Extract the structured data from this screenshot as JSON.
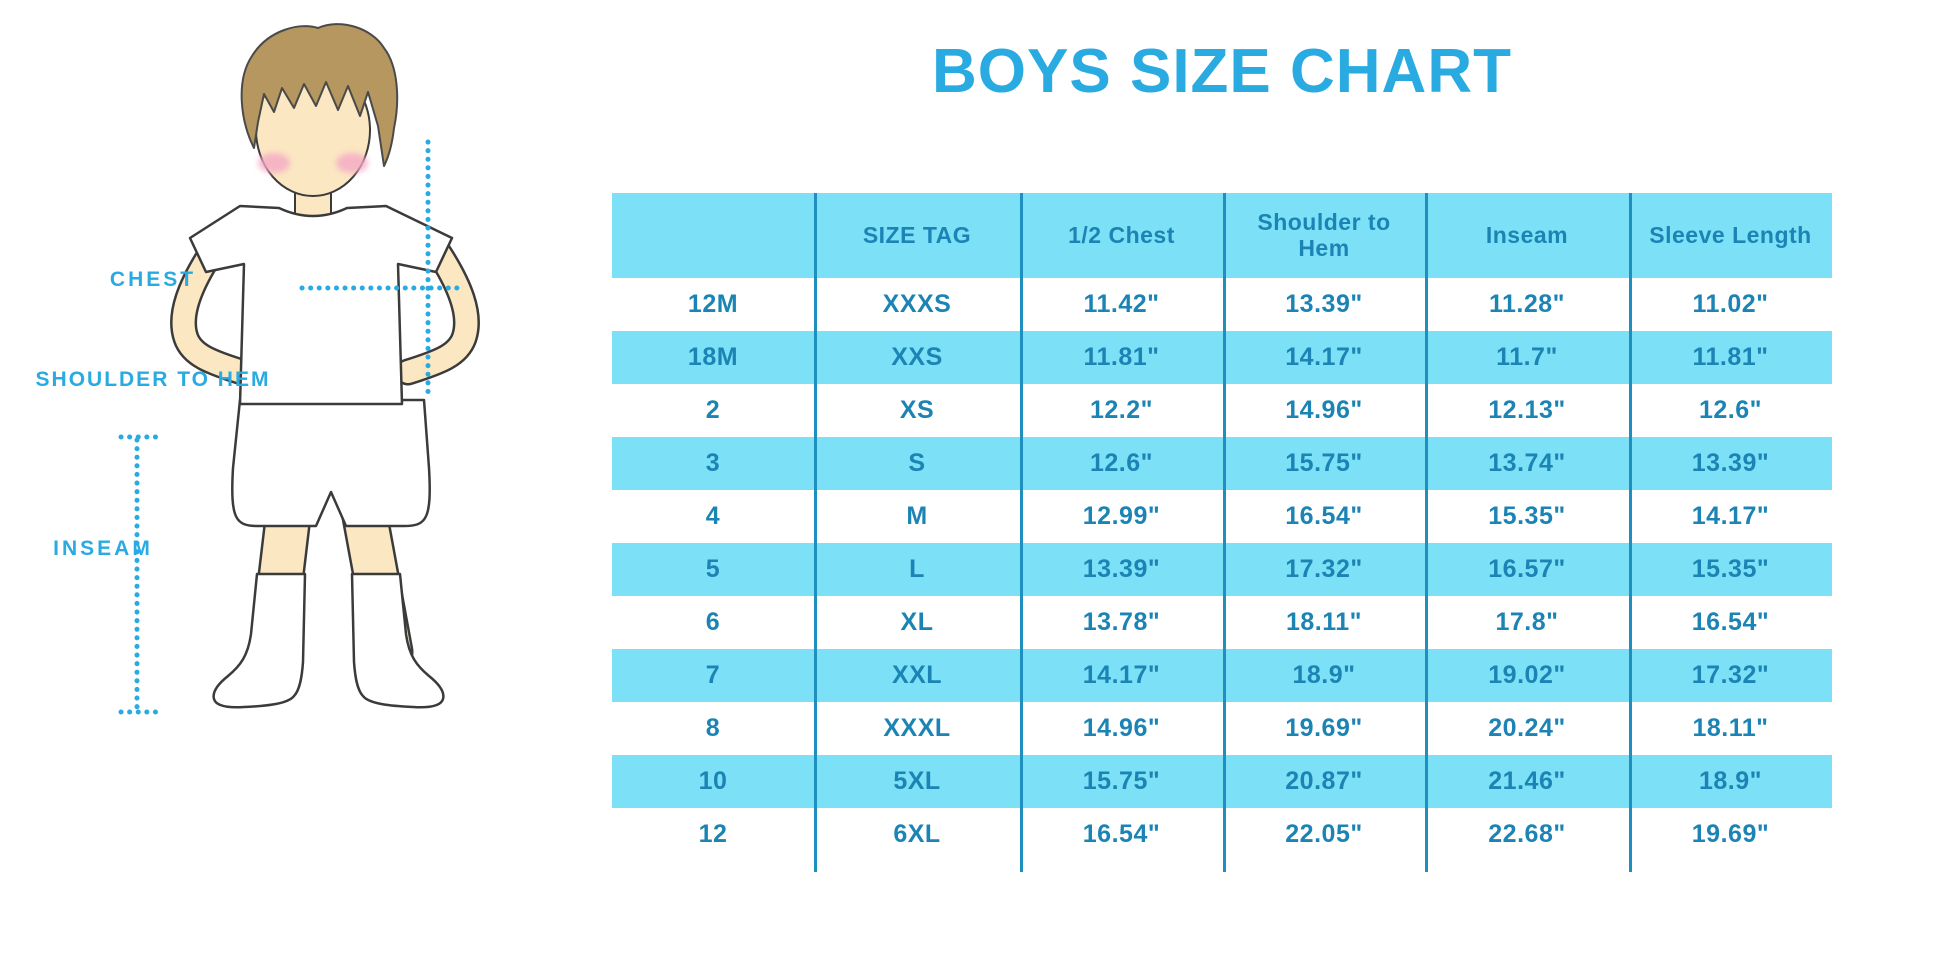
{
  "page": {
    "title": "BOYS SIZE CHART"
  },
  "colors": {
    "accent": "#29ABE2",
    "row_highlight": "#7CE0F6",
    "table_text": "#1C84B4",
    "divider": "#1E8FBE",
    "hair": "#B5975F",
    "skin": "#FBE7C2",
    "blush": "#F5A8C6"
  },
  "figure_labels": {
    "chest": "CHEST",
    "shoulder_to_hem": "SHOULDER TO HEM",
    "inseam": "INSEAM"
  },
  "chart_data": {
    "type": "table",
    "title": "BOYS SIZE CHART",
    "columns": [
      "",
      "SIZE TAG",
      "1/2 Chest",
      "Shoulder to Hem",
      "Inseam",
      "Sleeve Length"
    ],
    "rows": [
      [
        "12M",
        "XXXS",
        "11.42\"",
        "13.39\"",
        "11.28\"",
        "11.02\""
      ],
      [
        "18M",
        "XXS",
        "11.81\"",
        "14.17\"",
        "11.7\"",
        "11.81\""
      ],
      [
        "2",
        "XS",
        "12.2\"",
        "14.96\"",
        "12.13\"",
        "12.6\""
      ],
      [
        "3",
        "S",
        "12.6\"",
        "15.75\"",
        "13.74\"",
        "13.39\""
      ],
      [
        "4",
        "M",
        "12.99\"",
        "16.54\"",
        "15.35\"",
        "14.17\""
      ],
      [
        "5",
        "L",
        "13.39\"",
        "17.32\"",
        "16.57\"",
        "15.35\""
      ],
      [
        "6",
        "XL",
        "13.78\"",
        "18.11\"",
        "17.8\"",
        "16.54\""
      ],
      [
        "7",
        "XXL",
        "14.17\"",
        "18.9\"",
        "19.02\"",
        "17.32\""
      ],
      [
        "8",
        "XXXL",
        "14.96\"",
        "19.69\"",
        "20.24\"",
        "18.11\""
      ],
      [
        "10",
        "5XL",
        "15.75\"",
        "20.87\"",
        "21.46\"",
        "18.9\""
      ],
      [
        "12",
        "6XL",
        "16.54\"",
        "22.05\"",
        "22.68\"",
        "19.69\""
      ]
    ],
    "layout": {
      "row_striping": "header and alternating rows light blue, others white",
      "column_dividers": true,
      "grid": "vertical dividers only, extending slightly below last row"
    }
  }
}
